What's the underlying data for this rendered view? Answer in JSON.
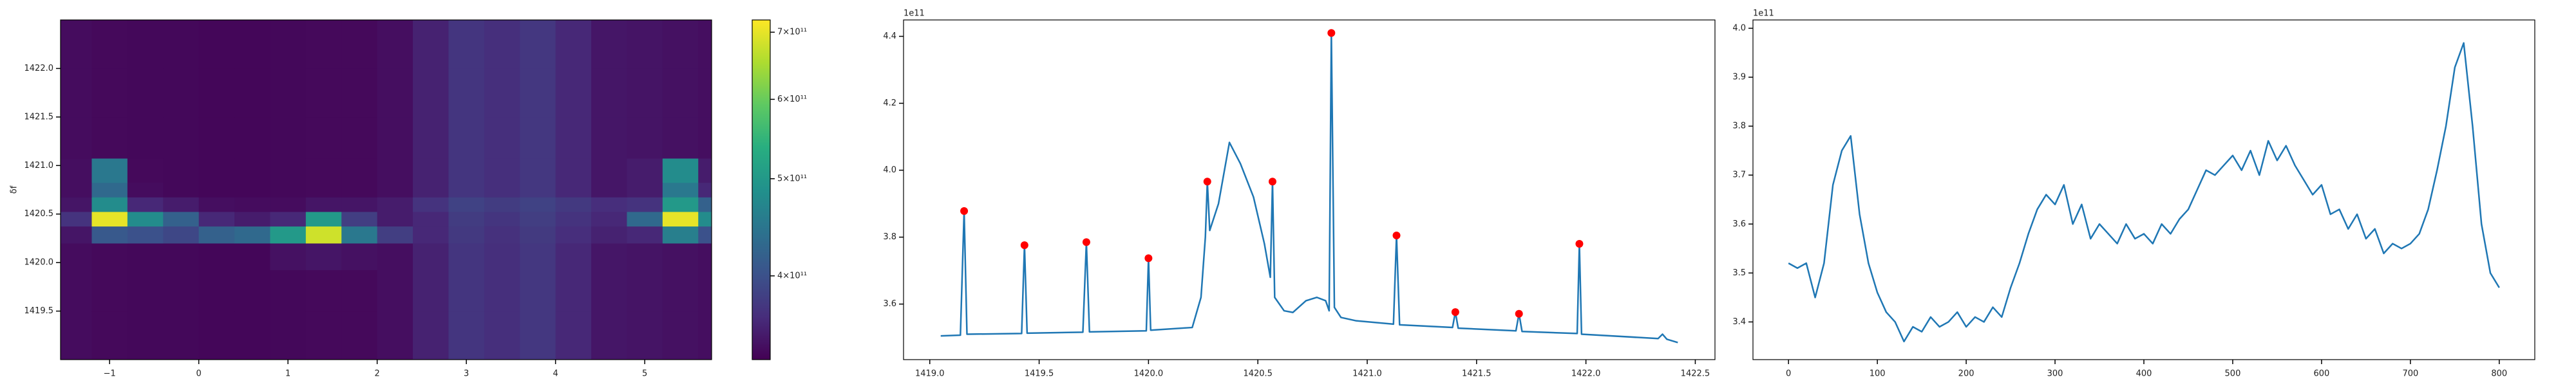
{
  "chart_data": [
    {
      "type": "heatmap",
      "ylabel": "δf",
      "colormap": "viridis",
      "zscale": "log",
      "xlim": [
        -1.55,
        5.75
      ],
      "ylim": [
        1419.0,
        1422.5
      ],
      "xticks": [
        {
          "value": -1,
          "label": "−1"
        },
        0,
        1,
        2,
        3,
        4,
        5
      ],
      "yticks": [
        {
          "value": 1419.5,
          "label": "1419.5"
        },
        {
          "value": 1420.0,
          "label": "1420.0"
        },
        {
          "value": 1420.5,
          "label": "1420.5"
        },
        {
          "value": 1421.0,
          "label": "1421.0"
        },
        {
          "value": 1421.5,
          "label": "1421.5"
        },
        {
          "value": 1422.0,
          "label": "1422.0"
        }
      ],
      "zlim": [
        330000000000.0,
        720000000000.0
      ],
      "zticks": [
        {
          "value": 400000000000.0,
          "label": "4×10¹¹"
        },
        {
          "value": 500000000000.0,
          "label": "5×10¹¹"
        },
        {
          "value": 600000000000.0,
          "label": "6×10¹¹"
        },
        {
          "value": 700000000000.0,
          "label": "7×10¹¹"
        }
      ],
      "x": [
        -1.4,
        -1.0,
        -0.6,
        -0.2,
        0.2,
        0.6,
        1.0,
        1.4,
        1.8,
        2.2,
        2.6,
        3.0,
        3.4,
        3.8,
        4.2,
        4.6,
        5.0,
        5.4,
        5.8
      ],
      "y": [
        1419.25,
        1419.75,
        1420.1,
        1420.3,
        1420.45,
        1420.6,
        1420.75,
        1420.9,
        1421.25,
        1421.75,
        1422.25
      ],
      "z": [
        [
          338000000000.0,
          336000000000.0,
          335000000000.0,
          335000000000.0,
          334000000000.0,
          334000000000.0,
          335000000000.0,
          336000000000.0,
          336000000000.0,
          340000000000.0,
          355000000000.0,
          372000000000.0,
          366000000000.0,
          374000000000.0,
          360000000000.0,
          346000000000.0,
          344000000000.0,
          342000000000.0,
          340000000000.0
        ],
        [
          338000000000.0,
          336000000000.0,
          335000000000.0,
          335000000000.0,
          334000000000.0,
          334000000000.0,
          335000000000.0,
          336000000000.0,
          336000000000.0,
          340000000000.0,
          355000000000.0,
          372000000000.0,
          366000000000.0,
          374000000000.0,
          360000000000.0,
          346000000000.0,
          344000000000.0,
          342000000000.0,
          340000000000.0
        ],
        [
          338000000000.0,
          336000000000.0,
          335000000000.0,
          335000000000.0,
          334000000000.0,
          334000000000.0,
          342000000000.0,
          345000000000.0,
          342000000000.0,
          340000000000.0,
          355000000000.0,
          372000000000.0,
          366000000000.0,
          374000000000.0,
          360000000000.0,
          346000000000.0,
          344000000000.0,
          342000000000.0,
          340000000000.0
        ],
        [
          345000000000.0,
          410000000000.0,
          400000000000.0,
          390000000000.0,
          420000000000.0,
          430000000000.0,
          500000000000.0,
          680000000000.0,
          450000000000.0,
          380000000000.0,
          360000000000.0,
          375000000000.0,
          368000000000.0,
          376000000000.0,
          365000000000.0,
          355000000000.0,
          360000000000.0,
          460000000000.0,
          400000000000.0
        ],
        [
          370000000000.0,
          700000000000.0,
          480000000000.0,
          420000000000.0,
          360000000000.0,
          350000000000.0,
          360000000000.0,
          500000000000.0,
          380000000000.0,
          350000000000.0,
          360000000000.0,
          378000000000.0,
          372000000000.0,
          380000000000.0,
          370000000000.0,
          360000000000.0,
          430000000000.0,
          700000000000.0,
          480000000000.0
        ],
        [
          345000000000.0,
          480000000000.0,
          360000000000.0,
          350000000000.0,
          340000000000.0,
          338000000000.0,
          338000000000.0,
          345000000000.0,
          345000000000.0,
          350000000000.0,
          370000000000.0,
          385000000000.0,
          378000000000.0,
          385000000000.0,
          375000000000.0,
          365000000000.0,
          370000000000.0,
          500000000000.0,
          420000000000.0
        ],
        [
          340000000000.0,
          430000000000.0,
          338000000000.0,
          335000000000.0,
          334000000000.0,
          334000000000.0,
          335000000000.0,
          336000000000.0,
          336000000000.0,
          340000000000.0,
          355000000000.0,
          372000000000.0,
          366000000000.0,
          374000000000.0,
          360000000000.0,
          346000000000.0,
          350000000000.0,
          450000000000.0,
          360000000000.0
        ],
        [
          340000000000.0,
          450000000000.0,
          336000000000.0,
          335000000000.0,
          334000000000.0,
          334000000000.0,
          335000000000.0,
          336000000000.0,
          336000000000.0,
          340000000000.0,
          355000000000.0,
          372000000000.0,
          366000000000.0,
          374000000000.0,
          360000000000.0,
          346000000000.0,
          350000000000.0,
          480000000000.0,
          350000000000.0
        ],
        [
          338000000000.0,
          336000000000.0,
          335000000000.0,
          335000000000.0,
          334000000000.0,
          334000000000.0,
          335000000000.0,
          336000000000.0,
          336000000000.0,
          340000000000.0,
          355000000000.0,
          372000000000.0,
          366000000000.0,
          374000000000.0,
          360000000000.0,
          346000000000.0,
          344000000000.0,
          342000000000.0,
          340000000000.0
        ],
        [
          338000000000.0,
          336000000000.0,
          335000000000.0,
          335000000000.0,
          334000000000.0,
          334000000000.0,
          335000000000.0,
          336000000000.0,
          336000000000.0,
          340000000000.0,
          355000000000.0,
          372000000000.0,
          366000000000.0,
          374000000000.0,
          360000000000.0,
          346000000000.0,
          344000000000.0,
          342000000000.0,
          340000000000.0
        ],
        [
          338000000000.0,
          336000000000.0,
          335000000000.0,
          335000000000.0,
          334000000000.0,
          334000000000.0,
          335000000000.0,
          336000000000.0,
          336000000000.0,
          340000000000.0,
          355000000000.0,
          372000000000.0,
          366000000000.0,
          374000000000.0,
          360000000000.0,
          346000000000.0,
          344000000000.0,
          342000000000.0,
          340000000000.0
        ]
      ]
    },
    {
      "type": "line",
      "offset_text": "1e11",
      "xlim": [
        1418.88,
        1422.59
      ],
      "ylim": [
        3.434,
        4.449
      ],
      "xticks": [
        {
          "value": 1419.0,
          "label": "1419.0"
        },
        {
          "value": 1419.5,
          "label": "1419.5"
        },
        {
          "value": 1420.0,
          "label": "1420.0"
        },
        {
          "value": 1420.5,
          "label": "1420.5"
        },
        {
          "value": 1421.0,
          "label": "1421.0"
        },
        {
          "value": 1421.5,
          "label": "1421.5"
        },
        {
          "value": 1422.0,
          "label": "1422.0"
        },
        {
          "value": 1422.5,
          "label": "1422.5"
        }
      ],
      "yticks": [
        3.6,
        3.8,
        {
          "value": 4.0,
          "label": "4.0"
        },
        4.2,
        4.4
      ],
      "series": [
        {
          "color": "#1f77b4",
          "style": "line",
          "x": [
            1419.05,
            1419.14,
            1419.157,
            1419.17,
            1419.42,
            1419.433,
            1419.445,
            1419.7,
            1419.716,
            1419.73,
            1419.99,
            1420.0,
            1420.01,
            1420.2,
            1420.24,
            1420.26,
            1420.269,
            1420.28,
            1420.32,
            1420.37,
            1420.42,
            1420.48,
            1420.53,
            1420.557,
            1420.567,
            1420.577,
            1420.62,
            1420.66,
            1420.72,
            1420.77,
            1420.81,
            1420.826,
            1420.836,
            1420.85,
            1420.88,
            1420.95,
            1421.12,
            1421.134,
            1421.148,
            1421.39,
            1421.403,
            1421.416,
            1421.68,
            1421.694,
            1421.708,
            1421.96,
            1421.97,
            1421.98,
            1422.33,
            1422.35,
            1422.37,
            1422.42
          ],
          "values": [
            3.505,
            3.507,
            3.878,
            3.51,
            3.512,
            3.776,
            3.513,
            3.516,
            3.785,
            3.517,
            3.52,
            3.737,
            3.522,
            3.53,
            3.62,
            3.8,
            3.966,
            3.82,
            3.9,
            4.083,
            4.02,
            3.92,
            3.78,
            3.68,
            3.966,
            3.62,
            3.58,
            3.575,
            3.61,
            3.62,
            3.61,
            3.58,
            4.41,
            3.59,
            3.56,
            3.55,
            3.54,
            3.805,
            3.538,
            3.53,
            3.576,
            3.528,
            3.52,
            3.571,
            3.518,
            3.512,
            3.78,
            3.51,
            3.497,
            3.51,
            3.495,
            3.485
          ]
        },
        {
          "color": "#ff0000",
          "style": "points",
          "x": [
            1419.157,
            1419.433,
            1419.716,
            1420.0,
            1420.269,
            1420.567,
            1420.836,
            1421.134,
            1421.403,
            1421.694,
            1421.97
          ],
          "values": [
            3.878,
            3.776,
            3.785,
            3.737,
            3.966,
            3.966,
            4.41,
            3.805,
            3.576,
            3.571,
            3.78
          ]
        }
      ]
    },
    {
      "type": "line",
      "offset_text": "1e11",
      "xlim": [
        -40,
        840
      ],
      "ylim": [
        3.323,
        4.017
      ],
      "xticks": [
        0,
        100,
        200,
        300,
        400,
        500,
        600,
        700,
        800
      ],
      "yticks": [
        3.4,
        3.5,
        3.6,
        3.7,
        3.8,
        3.9,
        {
          "value": 4.0,
          "label": "4.0"
        }
      ],
      "series": [
        {
          "color": "#1f77b4",
          "style": "line",
          "x": [
            0,
            10,
            20,
            30,
            40,
            50,
            60,
            70,
            80,
            90,
            100,
            110,
            120,
            130,
            140,
            150,
            160,
            170,
            180,
            190,
            200,
            210,
            220,
            230,
            240,
            250,
            260,
            270,
            280,
            290,
            300,
            310,
            320,
            330,
            340,
            350,
            360,
            370,
            380,
            390,
            400,
            410,
            420,
            430,
            440,
            450,
            460,
            470,
            480,
            490,
            500,
            510,
            520,
            530,
            540,
            550,
            560,
            570,
            580,
            590,
            600,
            610,
            620,
            630,
            640,
            650,
            660,
            670,
            680,
            690,
            700,
            710,
            720,
            730,
            740,
            750,
            760,
            770,
            780,
            790,
            800
          ],
          "values": [
            3.52,
            3.51,
            3.52,
            3.45,
            3.52,
            3.68,
            3.75,
            3.78,
            3.62,
            3.52,
            3.46,
            3.42,
            3.4,
            3.36,
            3.39,
            3.38,
            3.41,
            3.39,
            3.4,
            3.42,
            3.39,
            3.41,
            3.4,
            3.43,
            3.41,
            3.47,
            3.52,
            3.58,
            3.63,
            3.66,
            3.64,
            3.68,
            3.6,
            3.64,
            3.57,
            3.6,
            3.58,
            3.56,
            3.6,
            3.57,
            3.58,
            3.56,
            3.6,
            3.58,
            3.61,
            3.63,
            3.67,
            3.71,
            3.7,
            3.72,
            3.74,
            3.71,
            3.75,
            3.7,
            3.77,
            3.73,
            3.76,
            3.72,
            3.69,
            3.66,
            3.68,
            3.62,
            3.63,
            3.59,
            3.62,
            3.57,
            3.59,
            3.54,
            3.56,
            3.55,
            3.56,
            3.58,
            3.63,
            3.71,
            3.8,
            3.92,
            3.97,
            3.8,
            3.6,
            3.5,
            3.47
          ]
        }
      ]
    }
  ]
}
